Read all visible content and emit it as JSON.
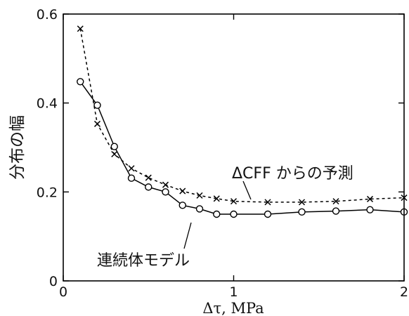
{
  "chart_data": {
    "type": "line",
    "xlabel": "Δτ, MPa",
    "ylabel": "分布の幅",
    "xlim": [
      0,
      2
    ],
    "ylim": [
      0,
      0.6
    ],
    "x_ticks": [
      "0",
      "1",
      "2"
    ],
    "y_ticks": [
      "0",
      "0.2",
      "0.4",
      "0.6"
    ],
    "grid": false,
    "series": [
      {
        "name": "ΔCFF からの予測",
        "style": "dashed",
        "marker": "x",
        "color": "#000000",
        "x": [
          0.1,
          0.2,
          0.3,
          0.4,
          0.5,
          0.6,
          0.7,
          0.8,
          0.9,
          1.0,
          1.2,
          1.4,
          1.6,
          1.8,
          2.0
        ],
        "y": [
          0.567,
          0.353,
          0.285,
          0.253,
          0.232,
          0.216,
          0.202,
          0.192,
          0.185,
          0.179,
          0.177,
          0.177,
          0.179,
          0.184,
          0.187
        ]
      },
      {
        "name": "連続体モデル",
        "style": "solid",
        "marker": "o",
        "color": "#000000",
        "x": [
          0.1,
          0.2,
          0.3,
          0.4,
          0.5,
          0.6,
          0.7,
          0.8,
          0.9,
          1.0,
          1.2,
          1.4,
          1.6,
          1.8,
          2.0
        ],
        "y": [
          0.448,
          0.395,
          0.302,
          0.231,
          0.211,
          0.2,
          0.17,
          0.162,
          0.15,
          0.15,
          0.15,
          0.155,
          0.157,
          0.16,
          0.155
        ]
      }
    ]
  }
}
